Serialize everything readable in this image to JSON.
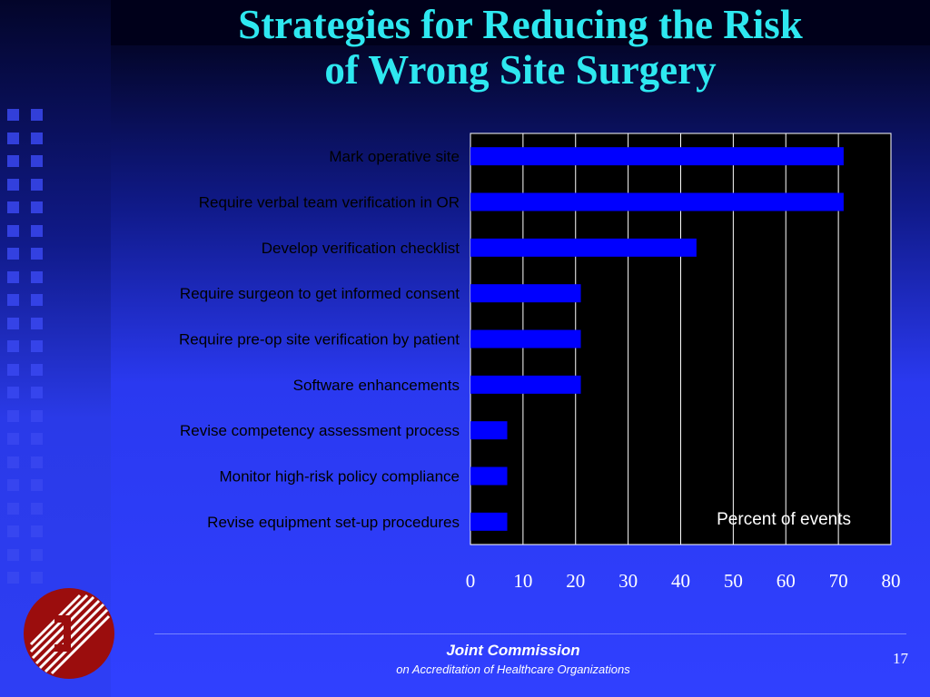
{
  "slide": {
    "title_line1": "Strategies for Reducing the Risk",
    "title_line2": "of Wrong Site Surgery"
  },
  "chart_data": {
    "type": "bar",
    "orientation": "horizontal",
    "categories": [
      "Mark operative site",
      "Require verbal team verification in OR",
      "Develop verification checklist",
      "Require surgeon to get informed consent",
      "Require pre-op site verification by patient",
      "Software enhancements",
      "Revise competency assessment process",
      "Monitor high-risk policy compliance",
      "Revise equipment set-up procedures"
    ],
    "values": [
      71,
      71,
      43,
      21,
      21,
      21,
      7,
      7,
      7
    ],
    "xlim": [
      0,
      80
    ],
    "xticks": [
      0,
      10,
      20,
      30,
      40,
      50,
      60,
      70,
      80
    ],
    "annotation": "Percent of events",
    "grid": "vertical",
    "colors": {
      "bar": "#0000ff",
      "plot_bg": "#000000",
      "grid": "#ffffff",
      "label_text": "#000000",
      "tick_text": "#ffffff"
    }
  },
  "footer": {
    "org": "Joint Commission",
    "sub": "on Accreditation of Healthcare Organizations",
    "page_number": "17"
  },
  "logo": {
    "icon": "joint-commission-logo-icon",
    "color": "#9b0d0d"
  }
}
